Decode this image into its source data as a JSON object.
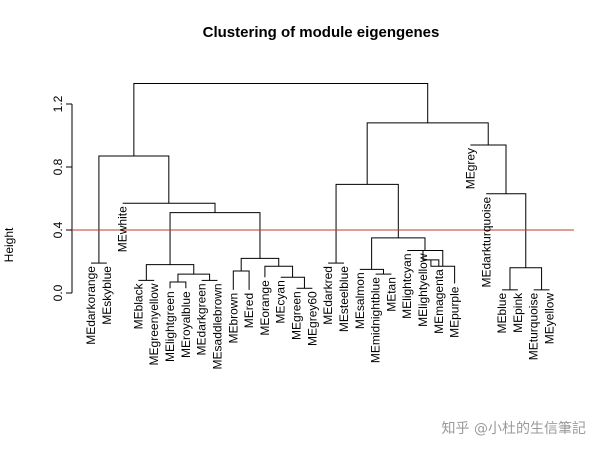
{
  "chart_data": {
    "type": "dendrogram",
    "title": "Clustering of module eigengenes",
    "xlabel": "",
    "ylabel": "Height",
    "ylim": [
      0,
      1.4
    ],
    "yticks": [
      "0.0",
      "0.4",
      "0.8",
      "1.2"
    ],
    "ytick_values": [
      0.0,
      0.4,
      0.8,
      1.2
    ],
    "cut_height": 0.4,
    "cut_line_color": "#c0392b",
    "leaves": [
      "MEdarkorange",
      "MEskyblue",
      "MEwhite",
      "MEblack",
      "MEgreenyellow",
      "MElightgreen",
      "MEroyalblue",
      "MEdarkgreen",
      "MEsaddlebrown",
      "MEbrown",
      "MEred",
      "MEorange",
      "MEcyan",
      "MEgreen",
      "MEgrey60",
      "MEdarkred",
      "MEsteelblue",
      "MEsalmon",
      "MEmidnightblue",
      "MEtan",
      "MElightcyan",
      "MElightyellow",
      "MEmagenta",
      "MEpurple",
      "MEgrey",
      "MEdarkturquoise",
      "MEblue",
      "MEpink",
      "MEturquoise",
      "MEyellow"
    ],
    "leaf_heights": [
      0.19,
      0.19,
      0.57,
      0.08,
      0.08,
      0.03,
      0.03,
      0.08,
      0.08,
      0.02,
      0.02,
      0.1,
      0.1,
      0.03,
      0.03,
      0.19,
      0.19,
      0.15,
      0.12,
      0.12,
      0.27,
      0.27,
      0.17,
      0.06,
      0.94,
      0.63,
      0.02,
      0.02,
      0.02,
      0.02
    ],
    "merges": [
      [
        -1,
        -2,
        0.19
      ],
      [
        -6,
        -7,
        0.07
      ],
      [
        -8,
        -9,
        0.08
      ],
      [
        -10,
        -11,
        0.14
      ],
      [
        -14,
        -15,
        0.03
      ],
      [
        -16,
        -17,
        0.19
      ],
      [
        -19,
        -20,
        0.12
      ],
      [
        -22,
        -23,
        0.21
      ],
      [
        -27,
        -28,
        0.02
      ],
      [
        -29,
        -30,
        0.02
      ],
      [
        -4,
        -5,
        0.08
      ],
      [
        -13,
        5,
        0.1
      ],
      [
        2,
        3,
        0.12
      ],
      [
        -18,
        7,
        0.15
      ],
      [
        8,
        -24,
        0.17
      ],
      [
        10,
        9,
        0.16
      ],
      [
        11,
        13,
        0.18
      ],
      [
        -12,
        12,
        0.17
      ],
      [
        -21,
        15,
        0.27
      ],
      [
        4,
        18,
        0.22
      ],
      [
        14,
        19,
        0.35
      ],
      [
        17,
        20,
        0.51
      ],
      [
        -26,
        16,
        0.63
      ],
      [
        -3,
        22,
        0.57
      ],
      [
        6,
        21,
        0.69
      ],
      [
        -25,
        23,
        0.94
      ],
      [
        1,
        24,
        0.87
      ],
      [
        25,
        26,
        1.08
      ],
      [
        27,
        28,
        1.33
      ]
    ]
  },
  "watermark": "知乎 @小杜的生信筆記"
}
